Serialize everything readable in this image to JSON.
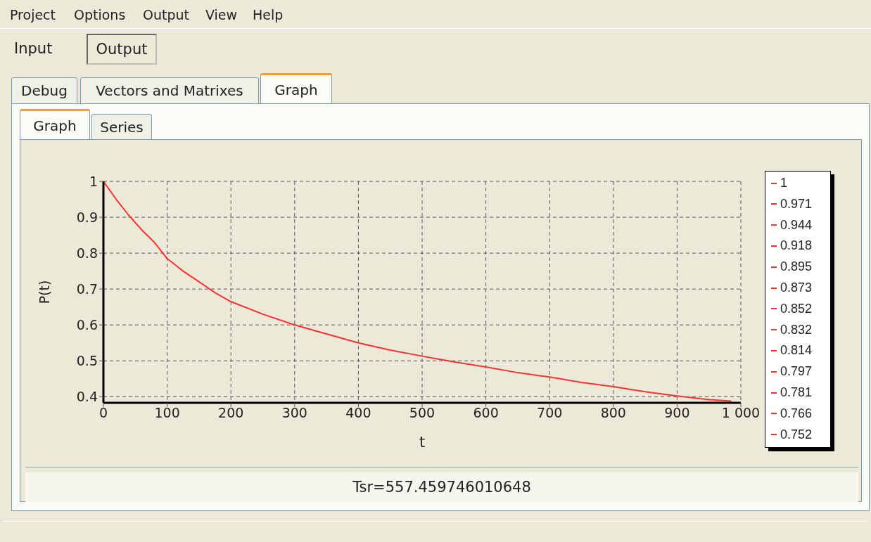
{
  "chart_data": {
    "type": "line",
    "xlabel": "t",
    "ylabel": "P(t)",
    "x": [
      0,
      20,
      40,
      60,
      80,
      100,
      125,
      150,
      175,
      200,
      250,
      300,
      350,
      400,
      450,
      500,
      550,
      600,
      650,
      700,
      750,
      800,
      850,
      900,
      950,
      985
    ],
    "series": [
      {
        "color": "#ff3030",
        "values": [
          1,
          0.95,
          0.905,
          0.865,
          0.83,
          0.785,
          0.75,
          0.72,
          0.69,
          0.665,
          0.63,
          0.6,
          0.575,
          0.55,
          0.53,
          0.513,
          0.497,
          0.483,
          0.467,
          0.455,
          0.44,
          0.428,
          0.414,
          0.402,
          0.392,
          0.388
        ]
      }
    ],
    "xlim": [
      0,
      1000
    ],
    "xticks": [
      0,
      100,
      200,
      300,
      400,
      500,
      600,
      700,
      800,
      900,
      {
        "value": 1000,
        "label": "1 000"
      }
    ],
    "ylim": [
      0.383,
      1
    ],
    "yticks": [
      0.4,
      0.5,
      0.6,
      0.7,
      0.8,
      0.9,
      1
    ],
    "grid": true,
    "marker": "none",
    "line_style": "solid",
    "annotations": [
      "Project",
      "Options",
      "Output",
      "View",
      "Help",
      "Input",
      "Output",
      "Debug",
      "Vectors and Matrixes",
      "Graph",
      "Graph",
      "Series",
      "Tsr=557.459746010648",
      "1",
      "0.971",
      "0.944",
      "0.918",
      "0.895",
      "0.873",
      "0.852",
      "0.832",
      "0.814",
      "0.797",
      "0.781",
      "0.766",
      "0.752"
    ]
  }
}
